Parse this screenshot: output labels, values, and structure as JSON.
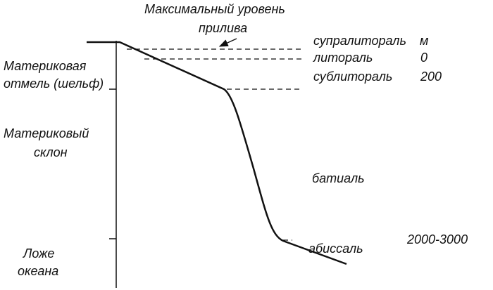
{
  "title": {
    "line1": "Максимальный уровень",
    "line2": "прилива"
  },
  "left_labels": {
    "shelf": [
      "Материковая",
      "отмель (шельф)"
    ],
    "slope": [
      "Материковый",
      "склон"
    ],
    "floor": [
      "Ложе",
      "океана"
    ]
  },
  "zones": {
    "supralittoral": "супралитораль",
    "littoral": "литораль",
    "sublittoral": "сублитораль",
    "bathyal": "батиаль",
    "abyssal": "абиссаль"
  },
  "depths": {
    "unit": "м",
    "littoral": "0",
    "sublittoral": "200",
    "abyssal": "2000-3000"
  }
}
